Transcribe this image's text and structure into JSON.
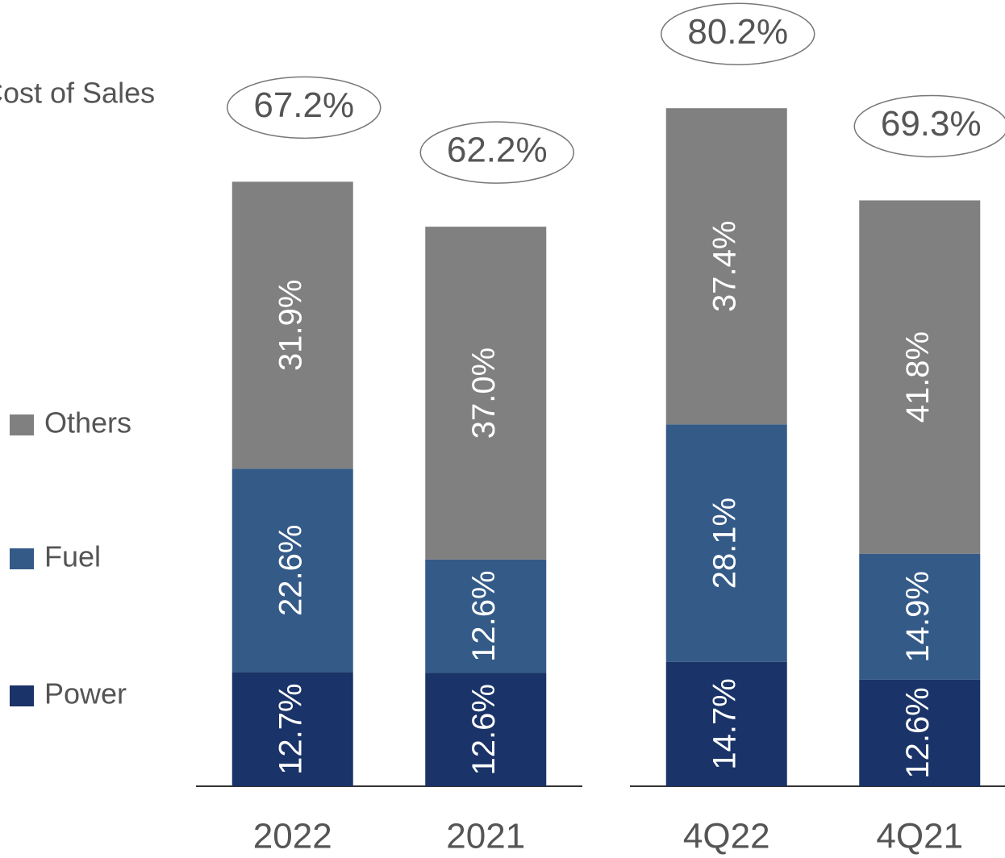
{
  "chart_data": {
    "type": "bar",
    "stacked": true,
    "title": "Cost of Sales",
    "legend": "left",
    "panels": [
      {
        "categories": [
          "2022",
          "2021"
        ],
        "ylim": [
          0,
          87.4
        ]
      },
      {
        "categories": [
          "4Q22",
          "4Q21"
        ],
        "ylim": [
          0,
          93
        ]
      }
    ],
    "series": [
      {
        "name": "Power",
        "color": "#1a3368",
        "values": [
          12.7,
          12.6,
          14.7,
          12.6
        ],
        "value_labels": [
          "12.7%",
          "12.6%",
          "14.7%",
          "12.6%"
        ]
      },
      {
        "name": "Fuel",
        "color": "#345a88",
        "values": [
          22.6,
          12.6,
          28.1,
          14.9
        ],
        "value_labels": [
          "22.6%",
          "12.6%",
          "28.1%",
          "14.9%"
        ]
      },
      {
        "name": "Others",
        "color": "#808080",
        "values": [
          31.9,
          37.0,
          37.4,
          41.8
        ],
        "value_labels": [
          "31.9%",
          "37.0%",
          "37.4%",
          "41.8%"
        ]
      }
    ],
    "totals": [
      67.2,
      62.2,
      80.2,
      69.3
    ],
    "total_labels": [
      "67.2%",
      "62.2%",
      "80.2%",
      "69.3%"
    ]
  }
}
